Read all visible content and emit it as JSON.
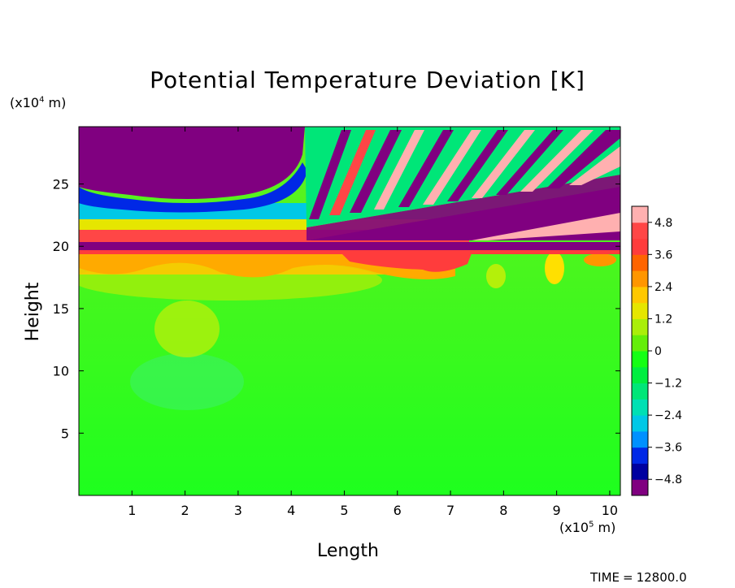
{
  "chart_data": {
    "type": "heatmap",
    "title": "Potential Temperature Deviation [K]",
    "xlabel": "Length",
    "ylabel": "Height",
    "x_unit": "(x10^5 m)",
    "y_unit": "(x10^4 m)",
    "x_unit_parts": {
      "prefix": "(x10",
      "exp": "5",
      "suffix": " m)"
    },
    "y_unit_parts": {
      "prefix": "(x10",
      "exp": "4",
      "suffix": " m)"
    },
    "xlim": [
      0,
      10.2
    ],
    "ylim": [
      0,
      29.6
    ],
    "x_ticks": [
      "1",
      "2",
      "3",
      "4",
      "5",
      "6",
      "7",
      "8",
      "9",
      "10"
    ],
    "y_ticks": [
      "5",
      "10",
      "15",
      "20",
      "25"
    ],
    "colorbar": {
      "range": [
        -5.4,
        5.4
      ],
      "labels": [
        "4.8",
        "3.6",
        "2.4",
        "1.2",
        "0",
        "−1.2",
        "−2.4",
        "−3.6",
        "−4.8"
      ],
      "colors": [
        "#800080",
        "#0000a0",
        "#0028e6",
        "#0090ff",
        "#00c8e6",
        "#00e0b4",
        "#00e678",
        "#00ee40",
        "#14ff14",
        "#64ee0a",
        "#aaee0a",
        "#e6e600",
        "#ffc800",
        "#ff9600",
        "#ff6400",
        "#ff3c3c",
        "#ff4646",
        "#ffb0b0"
      ]
    },
    "annotation": {
      "label": "TIME",
      "equals": "=",
      "value": "12800.0"
    }
  }
}
